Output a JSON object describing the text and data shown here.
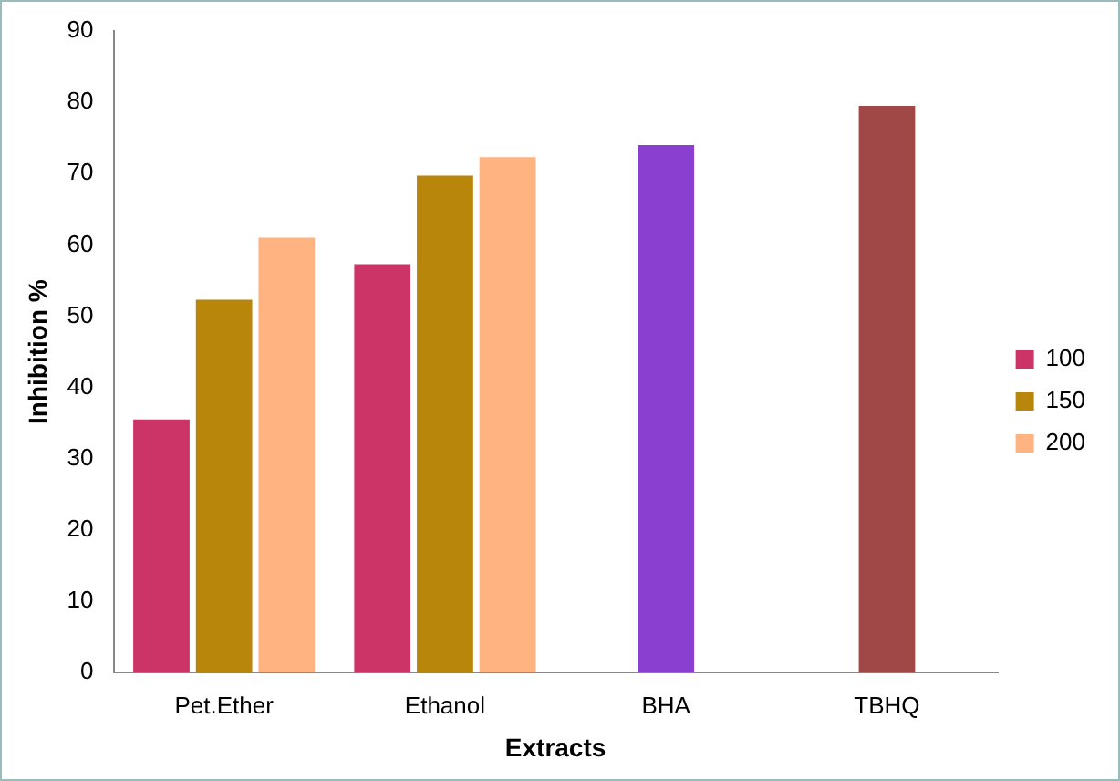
{
  "chart_data": {
    "type": "bar",
    "xlabel": "Extracts",
    "ylabel": "Inhibition %",
    "categories": [
      "Pet.Ether",
      "Ethanol",
      "BHA",
      "TBHQ"
    ],
    "series": [
      {
        "name": "100",
        "color": "#cc3366",
        "values": [
          35.5,
          57.3,
          null,
          null
        ]
      },
      {
        "name": "150",
        "color": "#b8860b",
        "colors": [
          "#b8860b",
          "#b8860b",
          "#8a3fd0",
          "#a04848"
        ],
        "values": [
          52.3,
          69.7,
          74,
          79.5
        ]
      },
      {
        "name": "200",
        "color": "#ffb380",
        "values": [
          61,
          72.3,
          null,
          null
        ]
      }
    ],
    "ylim": [
      0,
      90
    ],
    "yticks": [
      0,
      10,
      20,
      30,
      40,
      50,
      60,
      70,
      80,
      90
    ],
    "grid": false,
    "legend": "right"
  }
}
